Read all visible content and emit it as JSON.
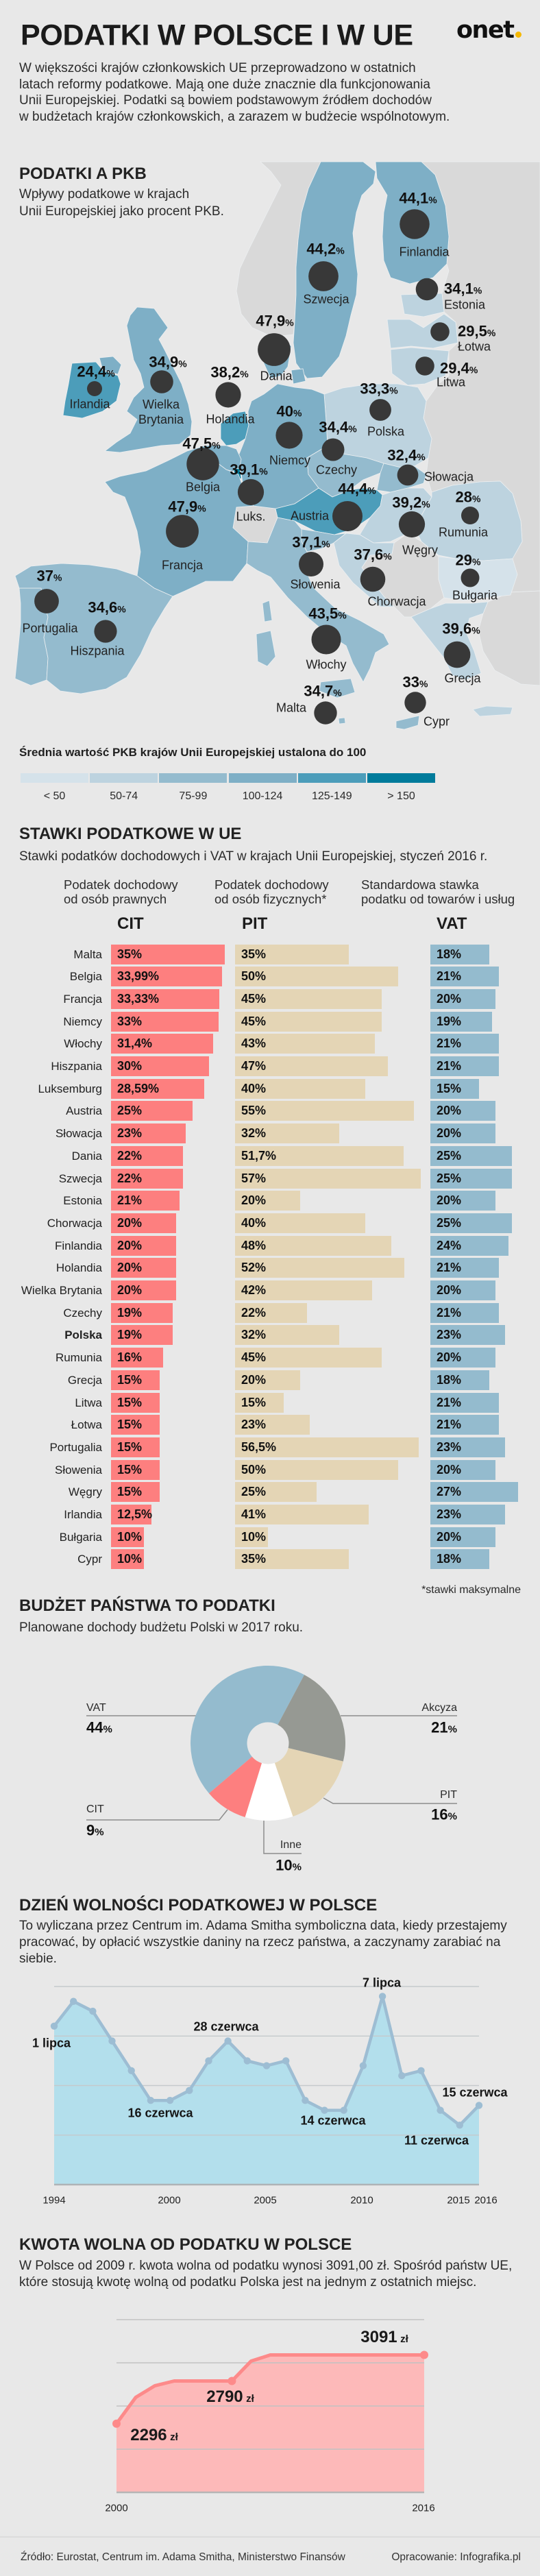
{
  "header": {
    "title": "PODATKI W POLSCE I W UE",
    "logo_text": "onet",
    "logo_dot_color": "#f5b800",
    "intro": "W większości krajów członkowskich UE przeprowadzono w ostatnich\nlatach reformy podatkowe. Mają one duże znacznie dla funkcjonowania\nUnii Europejskiej. Podatki są bowiem podstawowym źródłem dochodów\nw budżetach krajów członkowskich, a zarazem w budżecie wspólnotowym."
  },
  "colors": {
    "background": "#e8e8e8",
    "non_eu_land": "#d9d9d9",
    "bubble": "#383838",
    "border": "#eceff1"
  },
  "chart_data": [
    {
      "type": "scatter",
      "variant": "bubble-choropleth-map",
      "title": "PODATKI A PKB",
      "subtitle": "Wpływy podatkowe w krajach\nUnii Europejskiej jako procent PKB.",
      "value_unit": "%",
      "points": [
        {
          "name": "Finlandia",
          "value": 44.1,
          "value_text": "44,1",
          "gdp_class": "100-124"
        },
        {
          "name": "Szwecja",
          "value": 44.2,
          "value_text": "44,2",
          "gdp_class": "100-124"
        },
        {
          "name": "Estonia",
          "value": 34.1,
          "value_text": "34,1",
          "gdp_class": "50-74"
        },
        {
          "name": "Łotwa",
          "value": 29.5,
          "value_text": "29,5",
          "gdp_class": "50-74"
        },
        {
          "name": "Litwa",
          "value": 29.4,
          "value_text": "29,4",
          "gdp_class": "50-74"
        },
        {
          "name": "Dania",
          "value": 47.9,
          "value_text": "47,9",
          "gdp_class": "100-124"
        },
        {
          "name": "Irlandia",
          "value": 24.4,
          "value_text": "24,4",
          "gdp_class": "125-149"
        },
        {
          "name": "Wielka Brytania",
          "value": 34.9,
          "value_text": "34,9",
          "gdp_class": "100-124"
        },
        {
          "name": "Holandia",
          "value": 38.2,
          "value_text": "38,2",
          "gdp_class": "125-149"
        },
        {
          "name": "Polska",
          "value": 33.3,
          "value_text": "33,3",
          "gdp_class": "50-74"
        },
        {
          "name": "Niemcy",
          "value": 40,
          "value_text": "40",
          "gdp_class": "100-124"
        },
        {
          "name": "Czechy",
          "value": 34.4,
          "value_text": "34,4",
          "gdp_class": "75-99"
        },
        {
          "name": "Belgia",
          "value": 47.5,
          "value_text": "47,5",
          "gdp_class": "100-124"
        },
        {
          "name": "Słowacja",
          "value": 32.4,
          "value_text": "32,4",
          "gdp_class": "75-99"
        },
        {
          "name": "Luks.",
          "value": 39.1,
          "value_text": "39,1",
          "gdp_class": "> 150"
        },
        {
          "name": "Austria",
          "value": 44.4,
          "value_text": "44,4",
          "gdp_class": "125-149"
        },
        {
          "name": "Węgry",
          "value": 39.2,
          "value_text": "39,2",
          "gdp_class": "50-74"
        },
        {
          "name": "Rumunia",
          "value": 28,
          "value_text": "28",
          "gdp_class": "50-74"
        },
        {
          "name": "Francja",
          "value": 47.9,
          "value_text": "47,9",
          "gdp_class": "100-124"
        },
        {
          "name": "Słowenia",
          "value": 37.1,
          "value_text": "37,1",
          "gdp_class": "75-99"
        },
        {
          "name": "Chorwacja",
          "value": 37.6,
          "value_text": "37,6",
          "gdp_class": "50-74"
        },
        {
          "name": "Bułgaria",
          "value": 29,
          "value_text": "29",
          "gdp_class": "< 50"
        },
        {
          "name": "Portugalia",
          "value": 37,
          "value_text": "37",
          "gdp_class": "75-99"
        },
        {
          "name": "Hiszpania",
          "value": 34.6,
          "value_text": "34,6",
          "gdp_class": "75-99"
        },
        {
          "name": "Włochy",
          "value": 43.5,
          "value_text": "43,5",
          "gdp_class": "75-99"
        },
        {
          "name": "Grecja",
          "value": 39.6,
          "value_text": "39,6",
          "gdp_class": "50-74"
        },
        {
          "name": "Malta",
          "value": 34.7,
          "value_text": "34,7",
          "gdp_class": "75-99"
        },
        {
          "name": "Cypr",
          "value": 33,
          "value_text": "33",
          "gdp_class": "75-99"
        }
      ],
      "legend": {
        "title": "Średnia wartość PKB krajów Unii Europejskiej ustalona do 100",
        "classes": [
          {
            "label": "< 50",
            "color": "#d5e2ea"
          },
          {
            "label": "50-74",
            "color": "#bdd3df"
          },
          {
            "label": "75-99",
            "color": "#94bbce"
          },
          {
            "label": "100-124",
            "color": "#7eafc6"
          },
          {
            "label": "125-149",
            "color": "#4c9dba"
          },
          {
            "label": "> 150",
            "color": "#007b9b"
          }
        ]
      }
    },
    {
      "type": "bar",
      "orientation": "horizontal",
      "title": "STAWKI PODATKOWE W UE",
      "subtitle": "Stawki podatków dochodowych i VAT w krajach Unii Europejskiej, styczeń 2016 r.",
      "unit": "%",
      "highlight_category": "Polska",
      "categories": [
        "Malta",
        "Belgia",
        "Francja",
        "Niemcy",
        "Włochy",
        "Hiszpania",
        "Luksemburg",
        "Austria",
        "Słowacja",
        "Dania",
        "Szwecja",
        "Estonia",
        "Chorwacja",
        "Finlandia",
        "Holandia",
        "Wielka Brytania",
        "Czechy",
        "Polska",
        "Rumunia",
        "Grecja",
        "Litwa",
        "Łotwa",
        "Portugalia",
        "Słowenia",
        "Węgry",
        "Irlandia",
        "Bułgaria",
        "Cypr"
      ],
      "series": [
        {
          "name": "CIT",
          "header": "Podatek dochodowy\nod osób prawnych",
          "color": "#fd7f7f",
          "values": [
            35,
            33.99,
            33.33,
            33,
            31.4,
            30,
            28.59,
            25,
            23,
            22,
            22,
            21,
            20,
            20,
            20,
            20,
            19,
            19,
            16,
            15,
            15,
            15,
            15,
            15,
            15,
            12.5,
            10,
            10
          ],
          "labels": [
            "35%",
            "33,99%",
            "33,33%",
            "33%",
            "31,4%",
            "30%",
            "28,59%",
            "25%",
            "23%",
            "22%",
            "22%",
            "21%",
            "20%",
            "20%",
            "20%",
            "20%",
            "19%",
            "19%",
            "16%",
            "15%",
            "15%",
            "15%",
            "15%",
            "15%",
            "15%",
            "12,5%",
            "10%",
            "10%"
          ]
        },
        {
          "name": "PIT",
          "header": "Podatek dochodowy\nod osób fizycznych*",
          "color": "#e4d5b5",
          "values": [
            35,
            50,
            45,
            45,
            43,
            47,
            40,
            55,
            32,
            51.7,
            57,
            20,
            40,
            48,
            52,
            42,
            22,
            32,
            45,
            20,
            15,
            23,
            56.5,
            50,
            25,
            41,
            10,
            35
          ],
          "labels": [
            "35%",
            "50%",
            "45%",
            "45%",
            "43%",
            "47%",
            "40%",
            "55%",
            "32%",
            "51,7%",
            "57%",
            "20%",
            "40%",
            "48%",
            "52%",
            "42%",
            "22%",
            "32%",
            "45%",
            "20%",
            "15%",
            "23%",
            "56,5%",
            "50%",
            "25%",
            "41%",
            "10%",
            "35%"
          ]
        },
        {
          "name": "VAT",
          "header": "Standardowa stawka\npodatku od towarów i usług",
          "color": "#94bbce",
          "values": [
            18,
            21,
            20,
            19,
            21,
            21,
            15,
            20,
            20,
            25,
            25,
            20,
            25,
            24,
            21,
            20,
            21,
            23,
            20,
            18,
            21,
            21,
            23,
            20,
            27,
            23,
            20,
            18
          ],
          "labels": [
            "18%",
            "21%",
            "20%",
            "19%",
            "21%",
            "21%",
            "15%",
            "20%",
            "20%",
            "25%",
            "25%",
            "20%",
            "25%",
            "24%",
            "21%",
            "20%",
            "21%",
            "23%",
            "20%",
            "18%",
            "21%",
            "21%",
            "23%",
            "20%",
            "27%",
            "23%",
            "20%",
            "18%"
          ]
        }
      ],
      "footnote": "*stawki maksymalne"
    },
    {
      "type": "pie",
      "variant": "donut",
      "title": "BUDŻET PAŃSTWA TO PODATKI",
      "subtitle": "Planowane dochody budżetu Polski w 2017 roku.",
      "unit": "%",
      "slices": [
        {
          "label": "VAT",
          "value": 44,
          "value_text": "44",
          "color": "#94bbce"
        },
        {
          "label": "Akcyza",
          "value": 21,
          "value_text": "21",
          "color": "#969993"
        },
        {
          "label": "PIT",
          "value": 16,
          "value_text": "16",
          "color": "#e4d5b5"
        },
        {
          "label": "Inne",
          "value": 10,
          "value_text": "10",
          "color": "#ffffff"
        },
        {
          "label": "CIT",
          "value": 9,
          "value_text": "9",
          "color": "#fd7f7f"
        }
      ]
    },
    {
      "type": "area",
      "title": "DZIEŃ WOLNOŚCI PODATKOWEJ W POLSCE",
      "description": "To wyliczana przez Centrum im. Adama Smitha symboliczna data, kiedy przestajemy\npracować, by opłacić wszystkie daniny na rzecz państwa, a zaczynamy zarabiać na\nsiebie.",
      "x": [
        1994,
        1995,
        1996,
        1997,
        1998,
        1999,
        2000,
        2001,
        2002,
        2003,
        2004,
        2005,
        2006,
        2007,
        2008,
        2009,
        2010,
        2011,
        2012,
        2013,
        2014,
        2015,
        2016
      ],
      "values": [
        31,
        36,
        34,
        28,
        22,
        16,
        16,
        18,
        24,
        28,
        24,
        23,
        24,
        16,
        14,
        14,
        23,
        37,
        21,
        22,
        14,
        11,
        15
      ],
      "value_unit": "day counted from 1 June (31 = 1 lipca)",
      "ylim": [
        -1,
        39
      ],
      "ygrid_step": 10,
      "grid": true,
      "xticks": [
        "1994",
        "2000",
        "2005",
        "2010",
        "2015",
        "2016"
      ],
      "annotations": [
        {
          "x": 1994,
          "label": "1 lipca"
        },
        {
          "x": 1999.5,
          "label": "16 czerwca"
        },
        {
          "x": 2003,
          "label": "28 czerwca"
        },
        {
          "x": 2008.5,
          "label": "14 czerwca"
        },
        {
          "x": 2011,
          "label": "7 lipca"
        },
        {
          "x": 2015,
          "label": "11 czerwca"
        },
        {
          "x": 2016,
          "label": "15 czerwca"
        }
      ],
      "line_color": "#9dbdd3",
      "fill_color": "#b3dfec"
    },
    {
      "type": "area",
      "title": "KWOTA WOLNA OD PODATKU W POLSCE",
      "description": "W Polsce od 2009 r. kwota wolna od podatku wynosi 3091,00 zł. Spośród państw UE,\nktóre stosują kwotę wolną od podatku Polska jest na jednym z ostatnich miejsc.",
      "x": [
        2000,
        2001,
        2002,
        2003,
        2004,
        2005,
        2006,
        2007,
        2008,
        2009,
        2010,
        2011,
        2012,
        2013,
        2014,
        2015,
        2016
      ],
      "values": [
        2296,
        2600,
        2735,
        2790,
        2790,
        2790,
        2790,
        3020,
        3091,
        3091,
        3091,
        3091,
        3091,
        3091,
        3091,
        3091,
        3091
      ],
      "value_unit": "zł",
      "ylim": [
        1500,
        3500
      ],
      "ygrid_step": 500,
      "grid": true,
      "xticks": [
        "2000",
        "2016"
      ],
      "markers_at": [
        2000,
        2006,
        2016
      ],
      "annotations": [
        {
          "x": 2000,
          "value_text": "2296",
          "unit": "zł"
        },
        {
          "x": 2006,
          "value_text": "2790",
          "unit": "zł"
        },
        {
          "x": 2016,
          "value_text": "3091",
          "unit": "zł"
        }
      ],
      "line_color": "#fd8a8a",
      "fill_color": "#fdb9b9"
    }
  ],
  "footer": {
    "source": "Źródło: Eurostat, Centrum im. Adama Smitha, Ministerstwo Finansów",
    "credit": "Opracowanie: Infografika.pl"
  }
}
